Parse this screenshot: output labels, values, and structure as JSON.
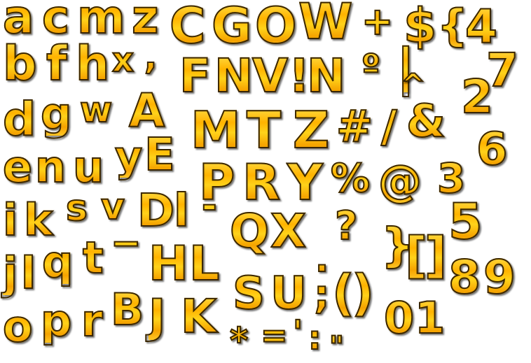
{
  "glyphs": [
    "a",
    "c",
    "m",
    "z",
    "C",
    "G",
    "O",
    "W",
    "+",
    "$",
    "{",
    "4",
    "b",
    "f",
    "h",
    "x",
    ",",
    "F",
    "N",
    "V",
    "!",
    "N",
    "º",
    "|",
    "7",
    "^",
    "2",
    "d",
    "g",
    "w",
    "A",
    "M",
    "T",
    "Z",
    "#",
    "/",
    "&",
    "6",
    "e",
    "n",
    "u",
    "y",
    "E",
    "P",
    "R",
    "Y",
    "%",
    "@",
    "3",
    "i",
    "k",
    "s",
    "v",
    "D",
    "l",
    "-",
    "Q",
    "X",
    "?",
    "5",
    "j",
    "l",
    "q",
    "t",
    "−",
    "}",
    "[",
    "]",
    "H",
    "L",
    ".",
    "8",
    "9",
    "o",
    "p",
    "r",
    "B",
    "S",
    "U",
    ";",
    "(",
    ")",
    "J",
    "K",
    "0",
    "1",
    "*",
    "=",
    "'",
    ":",
    "\""
  ]
}
